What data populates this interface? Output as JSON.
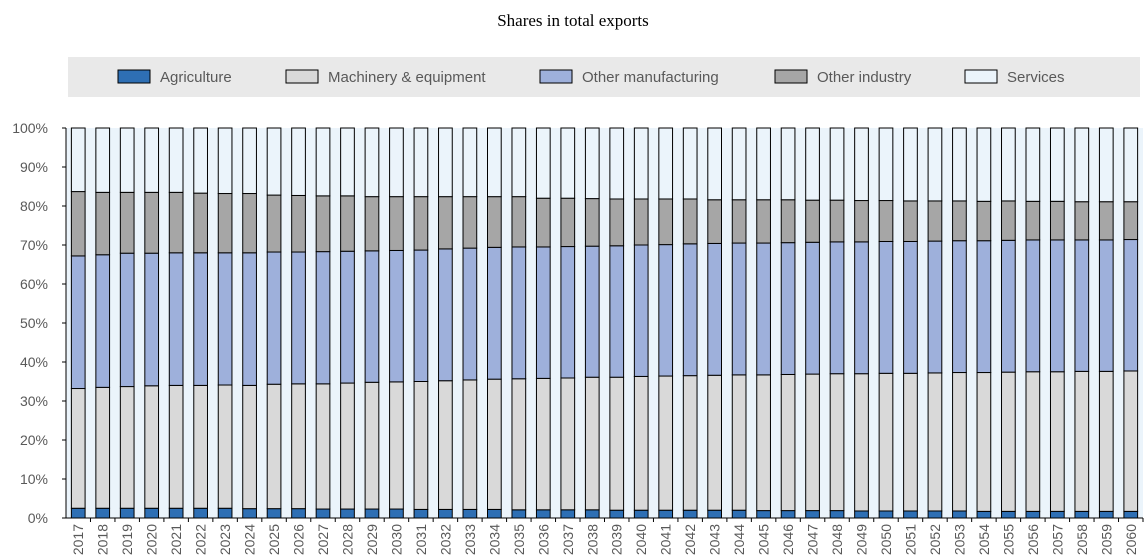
{
  "chart_data": {
    "type": "bar",
    "stacked": true,
    "title": "Shares in total exports",
    "xlabel": "",
    "ylabel": "",
    "ylim": [
      0,
      100
    ],
    "yticks": [
      "0%",
      "10%",
      "20%",
      "30%",
      "40%",
      "50%",
      "60%",
      "70%",
      "80%",
      "90%",
      "100%"
    ],
    "grid": false,
    "legend_position": "top",
    "categories": [
      "2017",
      "2018",
      "2019",
      "2020",
      "2021",
      "2022",
      "2023",
      "2024",
      "2025",
      "2026",
      "2027",
      "2028",
      "2029",
      "2030",
      "2031",
      "2032",
      "2033",
      "2034",
      "2035",
      "2036",
      "2037",
      "2038",
      "2039",
      "2040",
      "2041",
      "2042",
      "2043",
      "2044",
      "2045",
      "2046",
      "2047",
      "2048",
      "2049",
      "2050",
      "2051",
      "2052",
      "2053",
      "2054",
      "2055",
      "2056",
      "2057",
      "2058",
      "2059",
      "2060"
    ],
    "series": [
      {
        "name": "Agriculture",
        "color": "#2e6fb4",
        "values": [
          2.5,
          2.5,
          2.5,
          2.5,
          2.5,
          2.5,
          2.5,
          2.4,
          2.4,
          2.4,
          2.3,
          2.3,
          2.3,
          2.3,
          2.2,
          2.2,
          2.2,
          2.2,
          2.1,
          2.1,
          2.1,
          2.1,
          2.0,
          2.0,
          2.0,
          2.0,
          2.0,
          2.0,
          1.9,
          1.9,
          1.9,
          1.9,
          1.8,
          1.8,
          1.8,
          1.8,
          1.8,
          1.7,
          1.7,
          1.7,
          1.7,
          1.7,
          1.7,
          1.7
        ]
      },
      {
        "name": "Machinery & equipment",
        "color": "#d9d9d9",
        "values": [
          30.7,
          31.0,
          31.2,
          31.4,
          31.5,
          31.5,
          31.6,
          31.6,
          31.9,
          32.0,
          32.1,
          32.3,
          32.5,
          32.6,
          32.8,
          33.0,
          33.2,
          33.4,
          33.6,
          33.7,
          33.8,
          34.0,
          34.1,
          34.3,
          34.4,
          34.5,
          34.6,
          34.7,
          34.8,
          34.9,
          35.0,
          35.1,
          35.2,
          35.3,
          35.3,
          35.4,
          35.5,
          35.6,
          35.7,
          35.8,
          35.8,
          35.9,
          35.9,
          36.0
        ]
      },
      {
        "name": "Other manufacturing",
        "color": "#9eb0db",
        "values": [
          34.0,
          34.0,
          34.2,
          34.0,
          34.0,
          34.0,
          33.9,
          34.0,
          33.9,
          33.8,
          33.9,
          33.8,
          33.7,
          33.7,
          33.7,
          33.8,
          33.8,
          33.8,
          33.8,
          33.7,
          33.7,
          33.6,
          33.7,
          33.7,
          33.7,
          33.8,
          33.8,
          33.8,
          33.8,
          33.8,
          33.8,
          33.8,
          33.8,
          33.8,
          33.8,
          33.8,
          33.8,
          33.8,
          33.8,
          33.8,
          33.8,
          33.7,
          33.7,
          33.7
        ]
      },
      {
        "name": "Other industry",
        "color": "#a6a6a6",
        "values": [
          16.5,
          16.0,
          15.6,
          15.6,
          15.5,
          15.3,
          15.2,
          15.2,
          14.6,
          14.5,
          14.3,
          14.2,
          13.9,
          13.8,
          13.7,
          13.4,
          13.2,
          13.0,
          12.9,
          12.5,
          12.4,
          12.2,
          12.0,
          11.8,
          11.7,
          11.5,
          11.2,
          11.1,
          11.1,
          11.0,
          10.8,
          10.7,
          10.6,
          10.5,
          10.4,
          10.3,
          10.2,
          10.1,
          10.1,
          9.9,
          9.9,
          9.8,
          9.8,
          9.7
        ]
      },
      {
        "name": "Services",
        "color": "#ebf4fb",
        "values": [
          16.3,
          16.5,
          16.5,
          16.5,
          16.5,
          16.7,
          16.8,
          16.8,
          17.2,
          17.3,
          17.4,
          17.4,
          17.6,
          17.6,
          17.6,
          17.6,
          17.6,
          17.6,
          17.6,
          18.0,
          18.0,
          18.1,
          18.2,
          18.2,
          18.2,
          18.2,
          18.4,
          18.4,
          18.4,
          18.4,
          18.5,
          18.5,
          18.6,
          18.6,
          18.7,
          18.7,
          18.7,
          18.8,
          18.7,
          18.8,
          18.8,
          18.9,
          18.9,
          18.9
        ]
      }
    ]
  }
}
